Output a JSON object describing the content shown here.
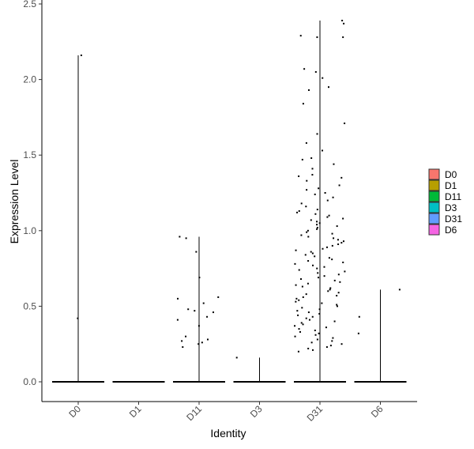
{
  "chart_data": {
    "type": "violin",
    "title": "",
    "xlabel": "Identity",
    "ylabel": "Expression Level",
    "ylim": [
      0,
      2.5
    ],
    "yticks": [
      "0.0",
      "0.5",
      "1.0",
      "1.5",
      "2.0",
      "2.5"
    ],
    "yticks_values": [
      0,
      0.5,
      1.0,
      1.5,
      2.0,
      2.5
    ],
    "categories": [
      "D0",
      "D1",
      "D11",
      "D3",
      "D31",
      "D6"
    ],
    "max_values": [
      2.16,
      0,
      0.96,
      0.16,
      2.39,
      0.61
    ],
    "points": {
      "D0": [
        0.42,
        2.16
      ],
      "D1": [],
      "D11": [
        0.96,
        0.95,
        0.86,
        0.69,
        0.55,
        0.56,
        0.52,
        0.47,
        0.48,
        0.46,
        0.43,
        0.41,
        0.37,
        0.3,
        0.28,
        0.27,
        0.26,
        0.25,
        0.23
      ],
      "D3": [
        0.16
      ],
      "D31": [
        2.39,
        2.37,
        2.29,
        2.28,
        2.28,
        2.07,
        2.05,
        2.01,
        1.95,
        1.93,
        1.84,
        1.71,
        1.64,
        1.58,
        1.53,
        1.48,
        1.47,
        1.44,
        1.41,
        1.37,
        1.36,
        1.35,
        1.33,
        1.3,
        1.28,
        1.27,
        1.25,
        1.24,
        1.22,
        1.2,
        1.18,
        1.16,
        1.14,
        1.13,
        1.12,
        1.11,
        1.1,
        1.09,
        1.08,
        1.07,
        1.06,
        1.05,
        1.04,
        1.03,
        1.02,
        1.01,
        1.0,
        0.99,
        0.98,
        0.97,
        0.96,
        0.95,
        0.94,
        0.93,
        0.92,
        0.91,
        0.9,
        0.89,
        0.88,
        0.87,
        0.86,
        0.85,
        0.84,
        0.83,
        0.82,
        0.81,
        0.8,
        0.79,
        0.78,
        0.77,
        0.76,
        0.75,
        0.74,
        0.73,
        0.72,
        0.71,
        0.7,
        0.69,
        0.68,
        0.67,
        0.66,
        0.65,
        0.64,
        0.63,
        0.62,
        0.61,
        0.6,
        0.59,
        0.58,
        0.57,
        0.56,
        0.55,
        0.54,
        0.53,
        0.52,
        0.51,
        0.5,
        0.49,
        0.48,
        0.47,
        0.46,
        0.45,
        0.44,
        0.43,
        0.42,
        0.41,
        0.4,
        0.39,
        0.38,
        0.37,
        0.36,
        0.35,
        0.34,
        0.33,
        0.32,
        0.31,
        0.3,
        0.29,
        0.28,
        0.27,
        0.26,
        0.25,
        0.24,
        0.23,
        0.22,
        0.21,
        0.2
      ],
      "D6": [
        0.61,
        0.43,
        0.32
      ]
    },
    "legend": {
      "position": "right",
      "entries": [
        {
          "label": "D0",
          "color": "#F8766D"
        },
        {
          "label": "D1",
          "color": "#B79F00"
        },
        {
          "label": "D11",
          "color": "#00BA38"
        },
        {
          "label": "D3",
          "color": "#00BFC4"
        },
        {
          "label": "D31",
          "color": "#619CFF"
        },
        {
          "label": "D6",
          "color": "#F564E3"
        }
      ]
    },
    "grid": false
  }
}
